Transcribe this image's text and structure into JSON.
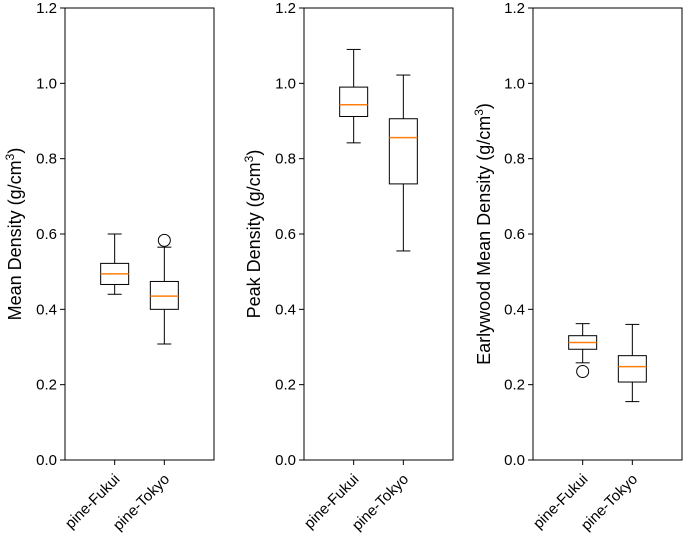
{
  "colors": {
    "box": "#000000",
    "median": "#ff7f0e",
    "background": "#ffffff"
  },
  "chart_data": [
    {
      "type": "boxplot",
      "ylabel": "Mean Density (g/cm",
      "ylabel_sup": "3",
      "ylabel_close": ")",
      "ylim": [
        0.0,
        1.2
      ],
      "yticks": [
        "0.0",
        "0.2",
        "0.4",
        "0.6",
        "0.8",
        "1.0",
        "1.2"
      ],
      "categories": [
        "pine-Fukui",
        "pine-Tokyo"
      ],
      "boxes": [
        {
          "whisker_low": 0.44,
          "q1": 0.466,
          "median": 0.494,
          "q3": 0.522,
          "whisker_high": 0.6,
          "outliers": []
        },
        {
          "whisker_low": 0.308,
          "q1": 0.4,
          "median": 0.435,
          "q3": 0.474,
          "whisker_high": 0.565,
          "outliers": [
            0.583
          ]
        }
      ]
    },
    {
      "type": "boxplot",
      "ylabel": "Peak Density (g/cm",
      "ylabel_sup": "3",
      "ylabel_close": ")",
      "ylim": [
        0.0,
        1.2
      ],
      "yticks": [
        "0.0",
        "0.2",
        "0.4",
        "0.6",
        "0.8",
        "1.0",
        "1.2"
      ],
      "categories": [
        "pine-Fukui",
        "pine-Tokyo"
      ],
      "boxes": [
        {
          "whisker_low": 0.842,
          "q1": 0.912,
          "median": 0.943,
          "q3": 0.99,
          "whisker_high": 1.09,
          "outliers": []
        },
        {
          "whisker_low": 0.555,
          "q1": 0.733,
          "median": 0.856,
          "q3": 0.906,
          "whisker_high": 1.022,
          "outliers": []
        }
      ]
    },
    {
      "type": "boxplot",
      "ylabel": "Earlywood Mean Density (g/cm",
      "ylabel_sup": "3",
      "ylabel_close": ")",
      "ylim": [
        0.0,
        1.2
      ],
      "yticks": [
        "0.0",
        "0.2",
        "0.4",
        "0.6",
        "0.8",
        "1.0",
        "1.2"
      ],
      "categories": [
        "pine-Fukui",
        "pine-Tokyo"
      ],
      "boxes": [
        {
          "whisker_low": 0.258,
          "q1": 0.294,
          "median": 0.312,
          "q3": 0.33,
          "whisker_high": 0.362,
          "outliers": [
            0.235
          ]
        },
        {
          "whisker_low": 0.155,
          "q1": 0.207,
          "median": 0.248,
          "q3": 0.277,
          "whisker_high": 0.36,
          "outliers": []
        }
      ]
    }
  ]
}
